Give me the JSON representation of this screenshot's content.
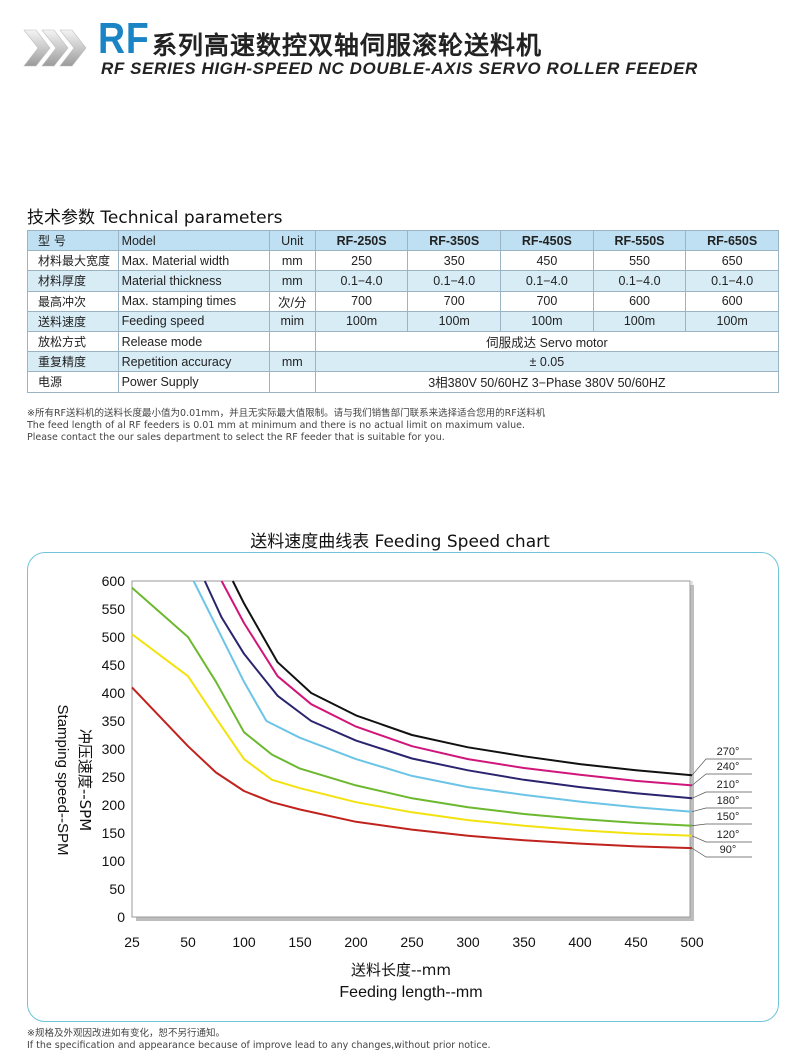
{
  "header": {
    "brand": "RF",
    "title_cn": "系列高速数控双轴伺服滚轮送料机",
    "title_en": "RF SERIES HIGH-SPEED NC DOUBLE-AXIS SERVO ROLLER FEEDER",
    "accent_color": "#1b84c4"
  },
  "params": {
    "title": "技术参数 Technical parameters",
    "header": {
      "cn": "型 号",
      "en": "Model",
      "unit": "Unit",
      "models": [
        "RF-250S",
        "RF-350S",
        "RF-450S",
        "RF-550S",
        "RF-650S"
      ]
    },
    "rows": [
      {
        "cn": "材料最大宽度",
        "en": "Max. Material width",
        "unit": "mm",
        "values": [
          "250",
          "350",
          "450",
          "550",
          "650"
        ]
      },
      {
        "cn": "材料厚度",
        "en": "Material thickness",
        "unit": "mm",
        "values": [
          "0.1−4.0",
          "0.1−4.0",
          "0.1−4.0",
          "0.1−4.0",
          "0.1−4.0"
        ]
      },
      {
        "cn": "最高冲次",
        "en": "Max. stamping times",
        "unit": "次/分",
        "values": [
          "700",
          "700",
          "700",
          "600",
          "600"
        ]
      },
      {
        "cn": "送料速度",
        "en": "Feeding speed",
        "unit": "mim",
        "values": [
          "100m",
          "100m",
          "100m",
          "100m",
          "100m"
        ]
      },
      {
        "cn": "放松方式",
        "en": "Release mode",
        "unit": "",
        "merged": "伺服成达 Servo motor"
      },
      {
        "cn": "重复精度",
        "en": "Repetition accuracy",
        "unit": "mm",
        "merged": "± 0.05"
      },
      {
        "cn": "电源",
        "en": "Power Supply",
        "unit": "",
        "merged": "3相380V  50/60HZ  3−Phase 380V 50/60HZ"
      }
    ]
  },
  "note": {
    "line1": "※所有RF送料机的送料长度最小值为0.01mm，并且无实际最大值限制。请与我们销售部门联系来选择适合您用的RF送料机",
    "line2": "The feed length of al RF feeders is 0.01 mm at minimum and there is no actual limit on maximum value.",
    "line3": "Please contact the our sales department to select the RF feeder that is suitable for you."
  },
  "chart_data": {
    "type": "line",
    "title": "送料速度曲线表 Feeding Speed chart",
    "xlabel_cn": "送料长度--mm",
    "xlabel_en": "Feeding length--mm",
    "ylabel_cn": "冲压速度--SPM",
    "ylabel_en": "Stamping speed--SPM",
    "xlim": [
      25,
      500
    ],
    "ylim": [
      0,
      600
    ],
    "xticks": [
      "25",
      "50",
      "100",
      "150",
      "200",
      "250",
      "300",
      "350",
      "400",
      "450",
      "500"
    ],
    "yticks": [
      "0",
      "50",
      "100",
      "150",
      "200",
      "250",
      "300",
      "350",
      "400",
      "450",
      "500",
      "550",
      "600"
    ],
    "grid": true,
    "series": [
      {
        "name": "270°",
        "color": "#111111",
        "points": [
          [
            90,
            600
          ],
          [
            100,
            560
          ],
          [
            130,
            455
          ],
          [
            160,
            400
          ],
          [
            200,
            360
          ],
          [
            250,
            325
          ],
          [
            300,
            303
          ],
          [
            350,
            287
          ],
          [
            400,
            273
          ],
          [
            450,
            262
          ],
          [
            500,
            253
          ]
        ]
      },
      {
        "name": "240°",
        "color": "#d0167a",
        "points": [
          [
            80,
            600
          ],
          [
            100,
            525
          ],
          [
            130,
            430
          ],
          [
            160,
            380
          ],
          [
            200,
            340
          ],
          [
            250,
            305
          ],
          [
            300,
            282
          ],
          [
            350,
            266
          ],
          [
            400,
            254
          ],
          [
            450,
            243
          ],
          [
            500,
            235
          ]
        ]
      },
      {
        "name": "210°",
        "color": "#2a246f",
        "points": [
          [
            65,
            600
          ],
          [
            80,
            535
          ],
          [
            100,
            470
          ],
          [
            130,
            395
          ],
          [
            160,
            350
          ],
          [
            200,
            315
          ],
          [
            250,
            283
          ],
          [
            300,
            262
          ],
          [
            350,
            245
          ],
          [
            400,
            232
          ],
          [
            450,
            221
          ],
          [
            500,
            212
          ]
        ]
      },
      {
        "name": "180°",
        "color": "#6cc4e6",
        "points": [
          [
            55,
            600
          ],
          [
            70,
            540
          ],
          [
            100,
            420
          ],
          [
            120,
            350
          ],
          [
            150,
            320
          ],
          [
            200,
            282
          ],
          [
            250,
            252
          ],
          [
            300,
            232
          ],
          [
            350,
            218
          ],
          [
            400,
            206
          ],
          [
            450,
            196
          ],
          [
            500,
            188
          ]
        ]
      },
      {
        "name": "150°",
        "color": "#6cb82f",
        "points": [
          [
            25,
            588
          ],
          [
            50,
            500
          ],
          [
            75,
            420
          ],
          [
            100,
            330
          ],
          [
            125,
            290
          ],
          [
            150,
            265
          ],
          [
            200,
            235
          ],
          [
            250,
            212
          ],
          [
            300,
            196
          ],
          [
            350,
            184
          ],
          [
            400,
            175
          ],
          [
            450,
            168
          ],
          [
            500,
            163
          ]
        ]
      },
      {
        "name": "120°",
        "color": "#f2e20f",
        "points": [
          [
            25,
            505
          ],
          [
            50,
            430
          ],
          [
            75,
            355
          ],
          [
            100,
            282
          ],
          [
            125,
            245
          ],
          [
            150,
            230
          ],
          [
            200,
            205
          ],
          [
            250,
            187
          ],
          [
            300,
            173
          ],
          [
            350,
            163
          ],
          [
            400,
            155
          ],
          [
            450,
            149
          ],
          [
            500,
            145
          ]
        ]
      },
      {
        "name": "90°",
        "color": "#c0221e",
        "points": [
          [
            25,
            410
          ],
          [
            50,
            305
          ],
          [
            75,
            258
          ],
          [
            100,
            225
          ],
          [
            125,
            205
          ],
          [
            150,
            192
          ],
          [
            200,
            170
          ],
          [
            250,
            156
          ],
          [
            300,
            145
          ],
          [
            350,
            137
          ],
          [
            400,
            131
          ],
          [
            450,
            126
          ],
          [
            500,
            123
          ]
        ]
      }
    ]
  },
  "footer": {
    "line1": "※规格及外观因改进如有变化，恕不另行通知。",
    "line2": "If the specification and appearance because of improve lead to any changes,without prior notice."
  }
}
